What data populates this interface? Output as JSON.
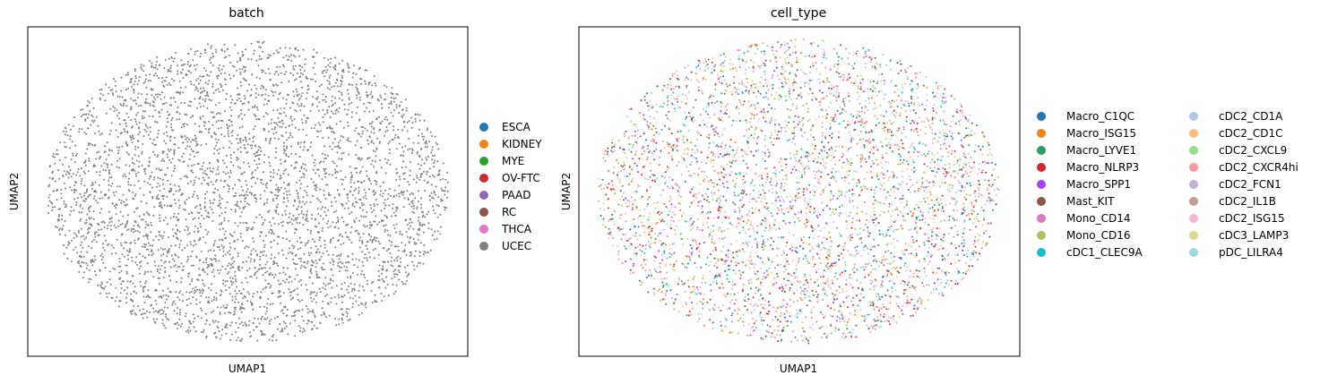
{
  "chart_data": [
    {
      "type": "scatter",
      "title": "batch",
      "xlabel": "UMAP1",
      "ylabel": "UMAP2",
      "grid": false,
      "ticks": false,
      "legend_placement": "right",
      "legend": [
        {
          "name": "ESCA",
          "color": "#1f77b4"
        },
        {
          "name": "KIDNEY",
          "color": "#ff7f0e"
        },
        {
          "name": "MYE",
          "color": "#2ca02c"
        },
        {
          "name": "OV-FTC",
          "color": "#d62728"
        },
        {
          "name": "PAAD",
          "color": "#9467bd"
        },
        {
          "name": "RC",
          "color": "#8c564b"
        },
        {
          "name": "THCA",
          "color": "#e377c2"
        },
        {
          "name": "UCEC",
          "color": "#7f7f7f"
        }
      ],
      "point_color_categories": [
        "UCEC"
      ]
    },
    {
      "type": "scatter",
      "title": "cell_type",
      "xlabel": "UMAP1",
      "ylabel": "UMAP2",
      "grid": false,
      "ticks": false,
      "legend_placement": "right",
      "legend_columns": 2,
      "legend": [
        {
          "name": "Macro_C1QC",
          "color": "#1f77b4"
        },
        {
          "name": "Macro_ISG15",
          "color": "#ff7f0e"
        },
        {
          "name": "Macro_LYVE1",
          "color": "#279e68"
        },
        {
          "name": "Macro_NLRP3",
          "color": "#d62728"
        },
        {
          "name": "Macro_SPP1",
          "color": "#aa40fc"
        },
        {
          "name": "Mast_KIT",
          "color": "#8c564b"
        },
        {
          "name": "Mono_CD14",
          "color": "#e377c2"
        },
        {
          "name": "Mono_CD16",
          "color": "#b5bd61"
        },
        {
          "name": "cDC1_CLEC9A",
          "color": "#17becf"
        },
        {
          "name": "cDC2_CD1A",
          "color": "#aec7e8"
        },
        {
          "name": "cDC2_CD1C",
          "color": "#ffbb78"
        },
        {
          "name": "cDC2_CXCL9",
          "color": "#98df8a"
        },
        {
          "name": "cDC2_CXCR4hi",
          "color": "#ff9896"
        },
        {
          "name": "cDC2_FCN1",
          "color": "#c5b0d5"
        },
        {
          "name": "cDC2_IL1B",
          "color": "#c49c94"
        },
        {
          "name": "cDC2_ISG15",
          "color": "#f7b6d2"
        },
        {
          "name": "cDC3_LAMP3",
          "color": "#dbdb8d"
        },
        {
          "name": "pDC_LILRA4",
          "color": "#9edae5"
        }
      ],
      "point_color_categories": [
        "Macro_C1QC",
        "Macro_ISG15",
        "Macro_LYVE1",
        "Macro_NLRP3",
        "Macro_SPP1",
        "Mast_KIT",
        "Mono_CD14",
        "Mono_CD16",
        "cDC1_CLEC9A",
        "cDC2_CD1A",
        "cDC2_CD1C",
        "cDC2_CXCL9",
        "cDC2_CXCR4hi",
        "cDC2_FCN1",
        "cDC2_IL1B",
        "cDC2_ISG15",
        "cDC3_LAMP3",
        "pDC_LILRA4"
      ]
    }
  ]
}
